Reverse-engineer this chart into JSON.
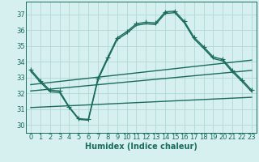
{
  "xlabel": "Humidex (Indice chaleur)",
  "bg_color": "#d6f0f0",
  "grid_color": "#b0d8d4",
  "line_color": "#1a6b5a",
  "xlim": [
    -0.5,
    23.5
  ],
  "ylim": [
    29.5,
    37.8
  ],
  "yticks": [
    30,
    31,
    32,
    33,
    34,
    35,
    36,
    37
  ],
  "xticks": [
    0,
    1,
    2,
    3,
    4,
    5,
    6,
    7,
    8,
    9,
    10,
    11,
    12,
    13,
    14,
    15,
    16,
    17,
    18,
    19,
    20,
    21,
    22,
    23
  ],
  "curve1_x": [
    0,
    1,
    2,
    3,
    4,
    5,
    6,
    7,
    8,
    9,
    10,
    11,
    12,
    13,
    14,
    15,
    16,
    17,
    18,
    19,
    20,
    21,
    22,
    23
  ],
  "curve1_y": [
    33.5,
    32.8,
    32.2,
    32.15,
    31.15,
    30.4,
    30.35,
    32.95,
    34.25,
    35.5,
    35.9,
    36.4,
    36.5,
    36.45,
    37.15,
    37.2,
    36.55,
    35.55,
    34.95,
    34.3,
    34.15,
    33.45,
    32.85,
    32.2
  ],
  "curve2_x": [
    0,
    1,
    2,
    3,
    4,
    5,
    6,
    7,
    8,
    9,
    10,
    11,
    12,
    13,
    14,
    15,
    16,
    17,
    18,
    19,
    20,
    21,
    22,
    23
  ],
  "curve2_y": [
    33.4,
    32.7,
    32.1,
    32.05,
    31.1,
    30.35,
    30.3,
    32.85,
    34.15,
    35.4,
    35.8,
    36.3,
    36.4,
    36.35,
    37.05,
    37.1,
    36.45,
    35.45,
    34.85,
    34.2,
    34.05,
    33.35,
    32.75,
    32.1
  ],
  "trend1_x": [
    0,
    23
  ],
  "trend1_y": [
    32.15,
    33.45
  ],
  "trend2_x": [
    0,
    23
  ],
  "trend2_y": [
    32.55,
    34.1
  ],
  "trend3_x": [
    0,
    23
  ],
  "trend3_y": [
    31.1,
    31.75
  ],
  "marker": "+",
  "markersize": 4.0,
  "linewidth": 1.0,
  "fontsize_tick": 6.0,
  "fontsize_label": 7.0
}
